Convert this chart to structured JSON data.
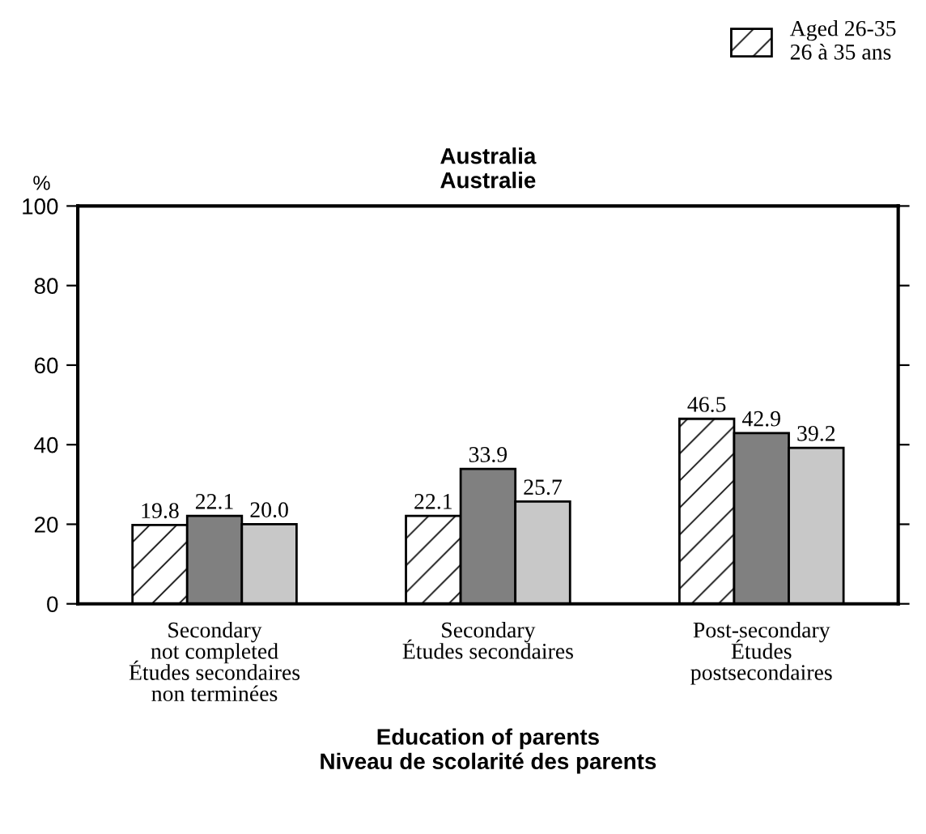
{
  "chart_data": {
    "type": "bar",
    "title": "Australia\nAustralie",
    "xlabel": "Education of parents\nNiveau de scolarité des parents",
    "ylabel": "%",
    "categories": [
      "Secondary\nnot completed\nÉtudes secondaires\nnon terminées",
      "Secondary\nÉtudes secondaires",
      "Post-secondary\nÉtudes\npostsecondaires"
    ],
    "series": [
      {
        "name": "Aged 26-35\n26 à 35 ans",
        "color": "#ffffff",
        "values": [
          19.8,
          22.1,
          46.5
        ],
        "value_labels": [
          "19.8",
          "22.1",
          "46.5"
        ]
      },
      {
        "color": "#808080",
        "values": [
          22.1,
          33.9,
          42.9
        ],
        "value_labels": [
          "22.1",
          "33.9",
          "42.9"
        ]
      },
      {
        "color": "#c8c8c8",
        "values": [
          20.0,
          25.7,
          39.2
        ],
        "value_labels": [
          "20.0",
          "25.7",
          "39.2"
        ]
      }
    ],
    "ylim": [
      0,
      100
    ],
    "yticks": [
      0,
      20,
      40,
      60,
      80,
      100
    ],
    "grid": false,
    "legend": "top right"
  }
}
